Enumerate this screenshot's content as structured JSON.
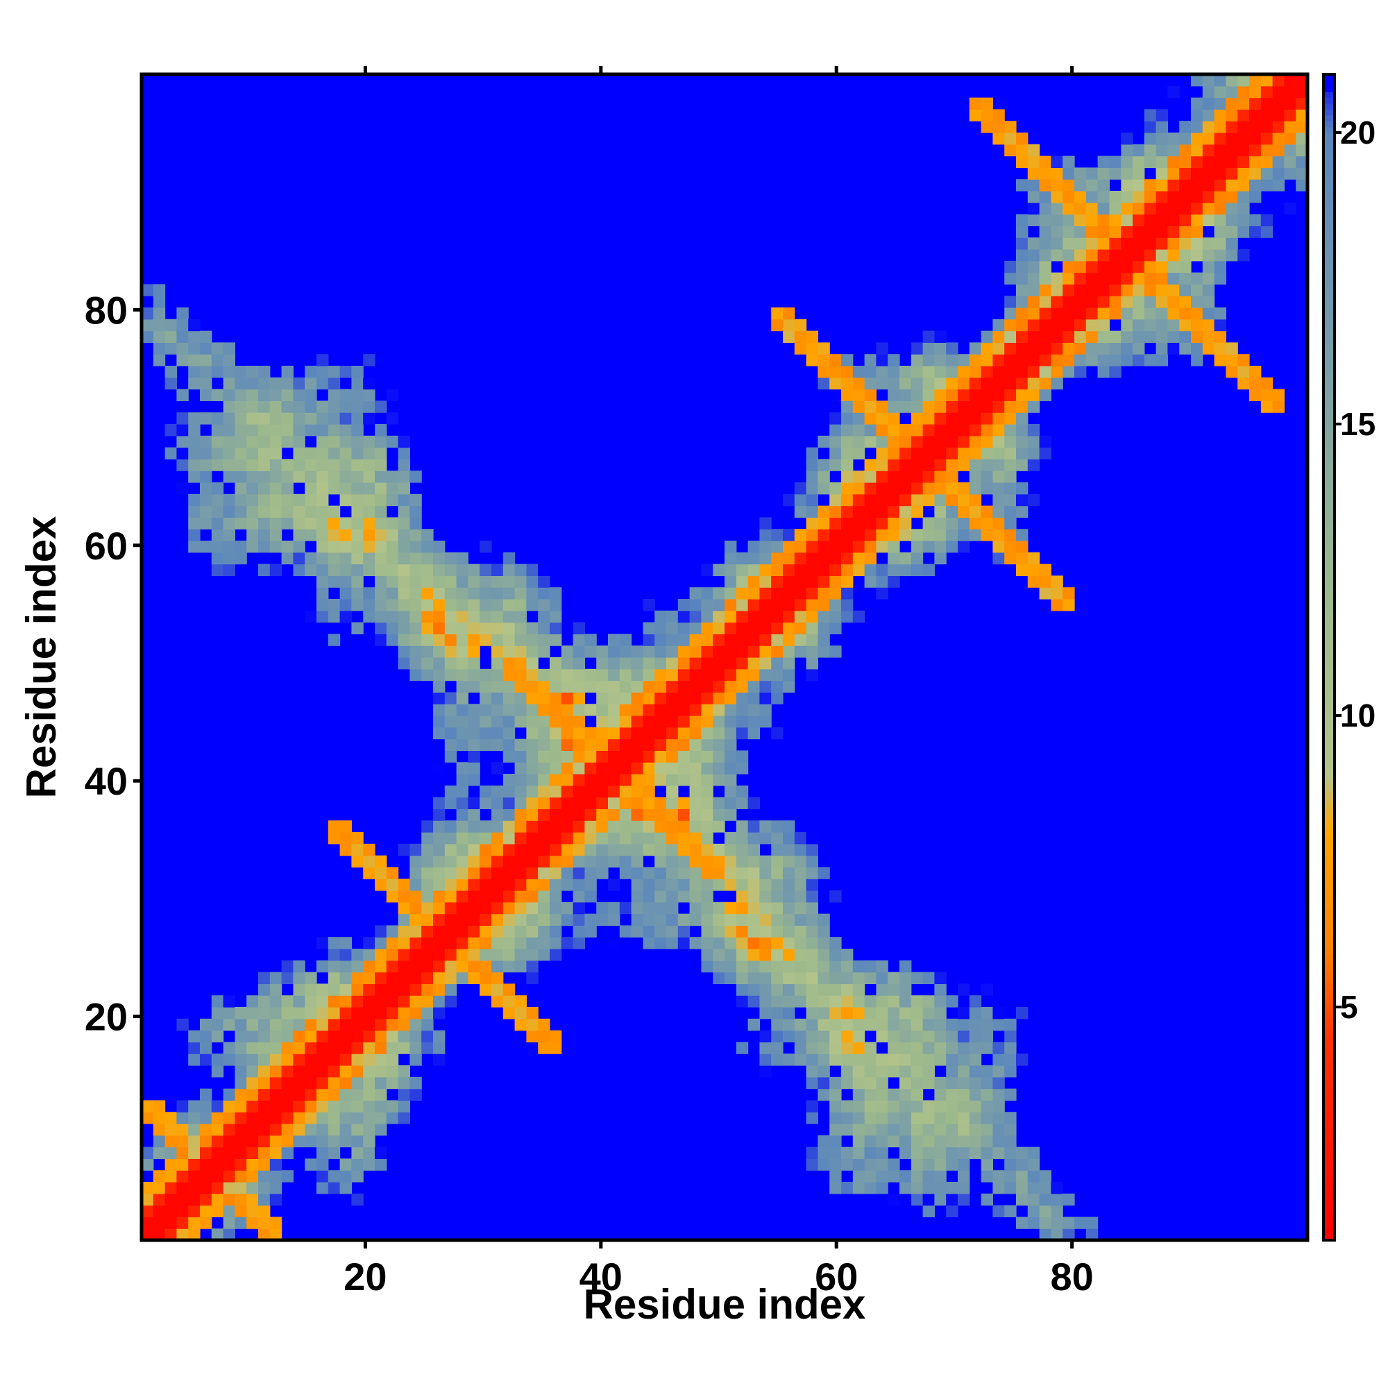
{
  "chart_data": {
    "type": "heatmap",
    "title": "",
    "xlabel": "Residue index",
    "ylabel": "Residue index",
    "n_residues": 100,
    "xlim": [
      1,
      100
    ],
    "ylim": [
      1,
      100
    ],
    "x_ticks": [
      20,
      40,
      60,
      80
    ],
    "y_ticks": [
      20,
      40,
      60,
      80
    ],
    "colorbar": {
      "range": [
        1,
        21
      ],
      "ticks": [
        5,
        10,
        15,
        20
      ],
      "colors": [
        {
          "value": 1,
          "color": "#ff0000"
        },
        {
          "value": 4.5,
          "color": "#ff3300"
        },
        {
          "value": 6,
          "color": "#ff8000"
        },
        {
          "value": 8,
          "color": "#ffa500"
        },
        {
          "value": 9,
          "color": "#b4c48a"
        },
        {
          "value": 12,
          "color": "#9db98c"
        },
        {
          "value": 16,
          "color": "#7a9ea8"
        },
        {
          "value": 20,
          "color": "#5a86bd"
        },
        {
          "value": 21,
          "color": "#0000ff"
        }
      ],
      "cap_color": "#0000ff"
    },
    "matrix_description": "symmetric pairwise distance map; values <=2 along diagonal (red), orange contacts near diagonal and in off-diagonal stripes, green/steel-blue mid-range values, blue (>=21) for far-apart residues",
    "helix_contact_regions": [
      {
        "i": [
          1,
          12
        ],
        "j": [
          1,
          12
        ]
      },
      {
        "i": [
          17,
          30
        ],
        "j": [
          26,
          36
        ]
      },
      {
        "i": [
          32,
          40
        ],
        "j": [
          41,
          50
        ]
      },
      {
        "i": [
          55,
          68
        ],
        "j": [
          68,
          80
        ]
      },
      {
        "i": [
          72,
          88
        ],
        "j": [
          82,
          98
        ]
      }
    ],
    "grid": false,
    "legend": "colorbar-right"
  }
}
